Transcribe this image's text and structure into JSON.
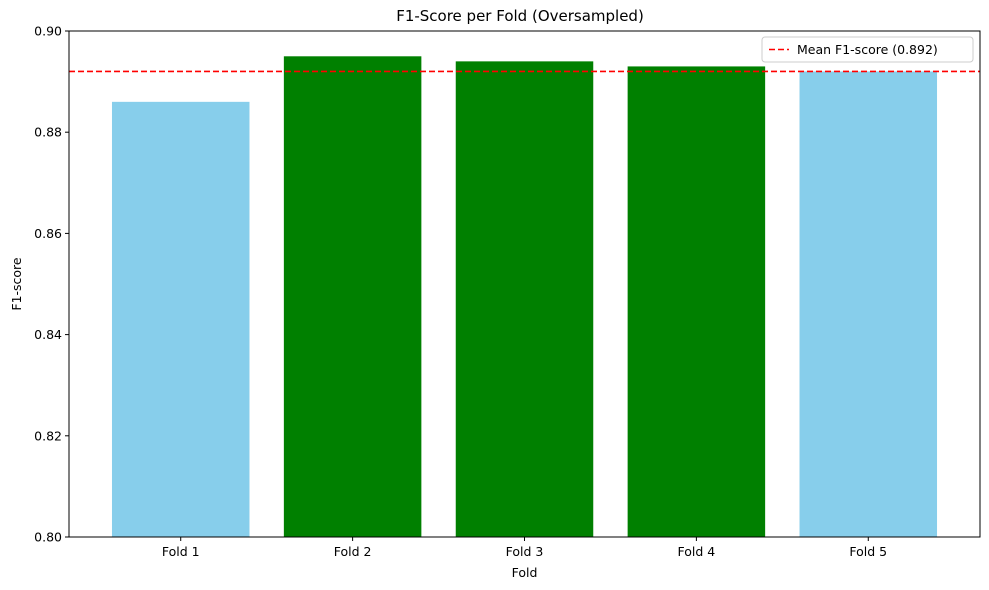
{
  "chart_data": {
    "type": "bar",
    "title": "F1-Score per Fold (Oversampled)",
    "xlabel": "Fold",
    "ylabel": "F1-score",
    "categories": [
      "Fold 1",
      "Fold 2",
      "Fold 3",
      "Fold 4",
      "Fold 5"
    ],
    "values": [
      0.886,
      0.895,
      0.894,
      0.893,
      0.892
    ],
    "bar_colors": [
      "#87CEEB",
      "#008000",
      "#008000",
      "#008000",
      "#87CEEB"
    ],
    "ylim": [
      0.8,
      0.9
    ],
    "yticks": [
      0.8,
      0.82,
      0.84,
      0.86,
      0.88,
      0.9
    ],
    "ytick_labels": [
      "0.80",
      "0.82",
      "0.84",
      "0.86",
      "0.88",
      "0.90"
    ],
    "reference_line": {
      "value": 0.892,
      "color": "#ff0000",
      "style": "dashed",
      "label": "Mean F1-score (0.892)"
    },
    "legend_position": "top-right",
    "grid": false
  }
}
